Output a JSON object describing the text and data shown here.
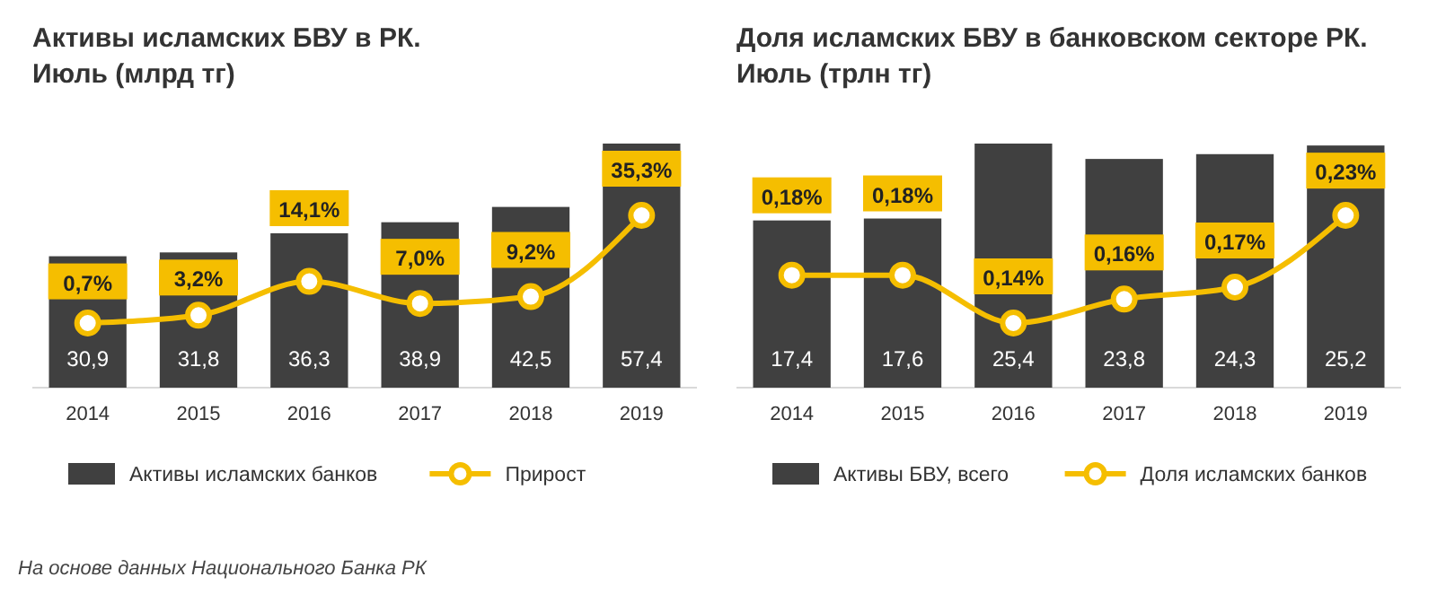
{
  "chart_data": [
    {
      "type": "bar",
      "title": "Активы исламских БВУ в РК.",
      "subtitle": "Июль (млрд тг)",
      "categories": [
        "2014",
        "2015",
        "2016",
        "2017",
        "2018",
        "2019"
      ],
      "tick_labels": "x",
      "legend": "bottom",
      "annotations": [
        "На основе данных Национального Банка РК"
      ],
      "series": [
        {
          "name": "Активы исламских банков",
          "color": "#404040",
          "values": [
            30.9,
            31.8,
            36.3,
            38.9,
            42.5,
            57.4
          ],
          "value_labels": [
            "30,9",
            "31,8",
            "36,3",
            "38,9",
            "42,5",
            "57,4"
          ]
        },
        {
          "name": "Прирост",
          "type": "line",
          "axis": "y2",
          "color": "#f5be00",
          "marker": "circle",
          "values": [
            0.7,
            3.2,
            14.1,
            7.0,
            9.2,
            35.3
          ],
          "value_labels": [
            "0,7%",
            "3,2%",
            "14,1%",
            "7,0%",
            "9,2%",
            "35,3%"
          ]
        }
      ]
    },
    {
      "type": "bar",
      "title": "Доля исламских БВУ в банковском секторе РК.",
      "subtitle": "Июль (трлн тг)",
      "categories": [
        "2014",
        "2015",
        "2016",
        "2017",
        "2018",
        "2019"
      ],
      "tick_labels": "x",
      "legend": "bottom",
      "series": [
        {
          "name": "Активы БВУ, всего",
          "color": "#404040",
          "values": [
            17.4,
            17.6,
            25.4,
            23.8,
            24.3,
            25.2
          ],
          "value_labels": [
            "17,4",
            "17,6",
            "25,4",
            "23,8",
            "24,3",
            "25,2"
          ]
        },
        {
          "name": "Доля исламских банков",
          "type": "line",
          "axis": "y2",
          "color": "#f5be00",
          "marker": "circle",
          "values": [
            0.18,
            0.18,
            0.14,
            0.16,
            0.17,
            0.23
          ],
          "value_labels": [
            "0,18%",
            "0,18%",
            "0,14%",
            "0,16%",
            "0,17%",
            "0,23%"
          ]
        }
      ]
    }
  ]
}
